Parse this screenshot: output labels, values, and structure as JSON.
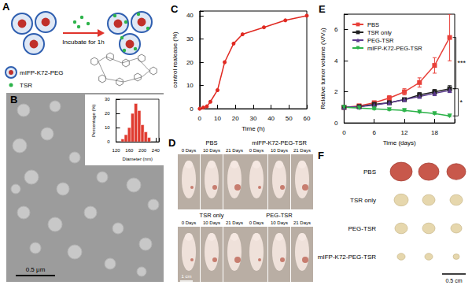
{
  "panels": {
    "A": {
      "label": "A",
      "step": "Incubate for 1h",
      "legend": [
        "mIFP-K72-PEG",
        "TSR"
      ]
    },
    "B": {
      "label": "B",
      "scale_bar": "0.5 μm"
    },
    "D": {
      "label": "D",
      "scale_bar": "1 cm",
      "groups": [
        {
          "name": "PBS",
          "days": [
            "0 Days",
            "10 Days",
            "21 Days"
          ]
        },
        {
          "name": "mIFP-K72-PEG-TSR",
          "days": [
            "0 Days",
            "10 Days",
            "21 Days"
          ]
        },
        {
          "name": "TSR only",
          "days": [
            "0 Days",
            "10 Days",
            "21 Days"
          ]
        },
        {
          "name": "PEG-TSR",
          "days": [
            "0 Days",
            "10 Days",
            "21 Days"
          ]
        }
      ]
    },
    "F": {
      "label": "F",
      "rows": [
        "PBS",
        "TSR only",
        "PEG-TSR",
        "mIFP-K72-PEG-TSR"
      ],
      "scale_bar": "0.5 cm"
    }
  },
  "chart_data": [
    {
      "type": "histogram",
      "xlabel": "Diameter (nm)",
      "ylabel": "Percentage (%)",
      "bins": [
        135,
        145,
        155,
        165,
        175,
        185,
        195,
        205,
        215,
        225
      ],
      "counts": [
        2,
        5,
        10,
        20,
        27,
        22,
        12,
        7,
        3
      ],
      "color": "#e03a2f",
      "xlim": [
        120,
        250
      ],
      "xticks": [
        120,
        160,
        200,
        240
      ],
      "ylim": [
        0,
        30
      ],
      "yticks": [
        0,
        10,
        20,
        30
      ]
    },
    {
      "type": "line",
      "title": "C",
      "xlabel": "Time (h)",
      "ylabel": "control realease (%)",
      "x": [
        0,
        2,
        4,
        6,
        10,
        14,
        19,
        24,
        36,
        48,
        60
      ],
      "values": [
        0,
        0.5,
        1,
        3,
        8,
        20,
        28,
        32,
        35,
        38,
        40
      ],
      "color": "#e02a22",
      "marker": "circle",
      "xlim": [
        0,
        60
      ],
      "xticks": [
        0,
        10,
        20,
        30,
        40,
        50,
        60
      ],
      "ylim": [
        0,
        42
      ],
      "yticks": [
        0,
        10,
        20,
        30,
        40
      ]
    },
    {
      "type": "line",
      "title": "E",
      "xlabel": "Time (days)",
      "ylabel": "Relative tumor volume (V/V₀)",
      "x": [
        0,
        3,
        6,
        9,
        12,
        15,
        18,
        21
      ],
      "series": [
        {
          "name": "PBS",
          "color": "#e8413a",
          "marker": "square",
          "values": [
            1,
            1.1,
            1.3,
            1.6,
            2.0,
            2.6,
            3.7,
            5.5
          ],
          "errors": [
            0.05,
            0.1,
            0.1,
            0.15,
            0.2,
            0.3,
            0.5,
            1.5
          ]
        },
        {
          "name": "TSR only",
          "color": "#222222",
          "marker": "square",
          "values": [
            1,
            1.05,
            1.2,
            1.3,
            1.5,
            1.8,
            2.0,
            2.2
          ],
          "errors": [
            0.05,
            0.05,
            0.1,
            0.1,
            0.1,
            0.15,
            0.15,
            0.2
          ]
        },
        {
          "name": "PEG-TSR",
          "color": "#5b3a8e",
          "marker": "triangle",
          "values": [
            1,
            1.05,
            1.15,
            1.3,
            1.5,
            1.7,
            1.9,
            2.1
          ],
          "errors": [
            0.05,
            0.05,
            0.1,
            0.1,
            0.1,
            0.1,
            0.15,
            0.15
          ]
        },
        {
          "name": "mIFP-K72-PEG-TSR",
          "color": "#2db34a",
          "marker": "triangle-down",
          "values": [
            1,
            0.95,
            0.9,
            0.85,
            0.8,
            0.7,
            0.6,
            0.45
          ],
          "errors": [
            0.05,
            0.05,
            0.05,
            0.05,
            0.05,
            0.05,
            0.05,
            0.05
          ]
        }
      ],
      "annotations": [
        {
          "text": "***",
          "between": [
            "PBS",
            "TSR only"
          ]
        },
        {
          "text": "*",
          "between": [
            "TSR only",
            "mIFP-K72-PEG-TSR"
          ]
        }
      ],
      "legend": "upper left",
      "xlim": [
        0,
        22
      ],
      "xticks": [
        0,
        6,
        12,
        18
      ],
      "ylim": [
        0,
        7
      ],
      "yticks": [
        0,
        2,
        4,
        6
      ]
    }
  ]
}
